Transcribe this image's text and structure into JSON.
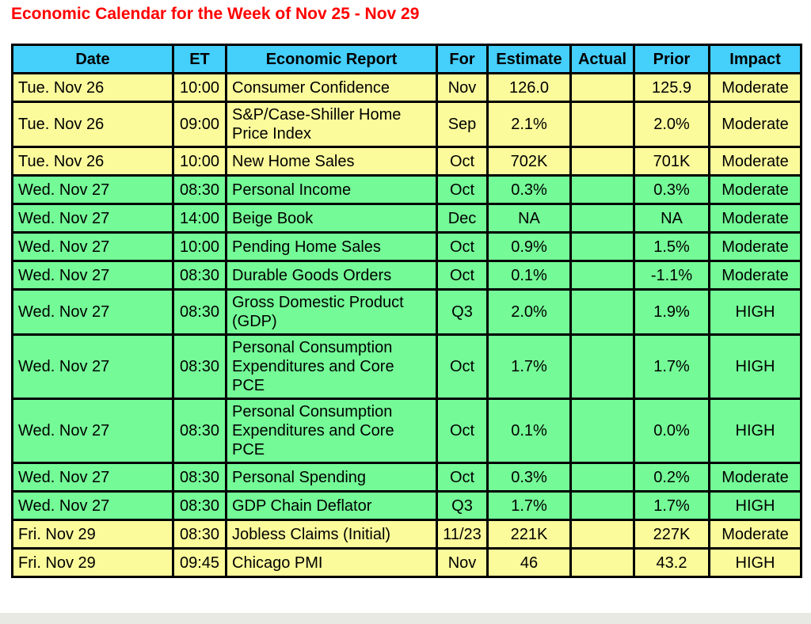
{
  "page": {
    "title": "Economic Calendar for the Week of Nov 25 - Nov 29"
  },
  "colors": {
    "title": "#FF0000",
    "header_bg": "#45CFFB",
    "yellow_row_bg": "#FBFB9C",
    "green_row_bg": "#74FB97",
    "border": "#000000",
    "text": "#000000",
    "page_bg": "#FFFFFF",
    "bottom_strip_bg": "#E9E9E4"
  },
  "chart_data": {
    "type": "table",
    "title": "Economic Calendar for the Week of Nov 25 - Nov 29",
    "columns": [
      "Date",
      "ET",
      "Economic Report",
      "For",
      "Estimate",
      "Actual",
      "Prior",
      "Impact"
    ],
    "rows": [
      {
        "date": "Tue. Nov 26",
        "et": "10:00",
        "report": "Consumer Confidence",
        "for": "Nov",
        "estimate": "126.0",
        "actual": "",
        "prior": "125.9",
        "impact": "Moderate",
        "row_color": "yellow"
      },
      {
        "date": "Tue. Nov 26",
        "et": "09:00",
        "report": "S&P/Case-Shiller Home Price Index",
        "for": "Sep",
        "estimate": "2.1%",
        "actual": "",
        "prior": "2.0%",
        "impact": "Moderate",
        "row_color": "yellow"
      },
      {
        "date": "Tue. Nov 26",
        "et": "10:00",
        "report": "New Home Sales",
        "for": "Oct",
        "estimate": "702K",
        "actual": "",
        "prior": "701K",
        "impact": "Moderate",
        "row_color": "yellow"
      },
      {
        "date": "Wed. Nov 27",
        "et": "08:30",
        "report": "Personal Income",
        "for": "Oct",
        "estimate": "0.3%",
        "actual": "",
        "prior": "0.3%",
        "impact": "Moderate",
        "row_color": "green"
      },
      {
        "date": "Wed. Nov 27",
        "et": "14:00",
        "report": "Beige Book",
        "for": "Dec",
        "estimate": "NA",
        "actual": "",
        "prior": "NA",
        "impact": "Moderate",
        "row_color": "green"
      },
      {
        "date": "Wed. Nov 27",
        "et": "10:00",
        "report": "Pending Home Sales",
        "for": "Oct",
        "estimate": "0.9%",
        "actual": "",
        "prior": "1.5%",
        "impact": "Moderate",
        "row_color": "green"
      },
      {
        "date": "Wed. Nov 27",
        "et": "08:30",
        "report": "Durable Goods Orders",
        "for": "Oct",
        "estimate": "0.1%",
        "actual": "",
        "prior": "-1.1%",
        "impact": "Moderate",
        "row_color": "green"
      },
      {
        "date": "Wed. Nov 27",
        "et": "08:30",
        "report": "Gross Domestic Product (GDP)",
        "for": "Q3",
        "estimate": "2.0%",
        "actual": "",
        "prior": "1.9%",
        "impact": "HIGH",
        "row_color": "green"
      },
      {
        "date": "Wed. Nov 27",
        "et": "08:30",
        "report": "Personal Consumption Expenditures and Core PCE",
        "for": "Oct",
        "estimate": "1.7%",
        "actual": "",
        "prior": "1.7%",
        "impact": "HIGH",
        "row_color": "green"
      },
      {
        "date": "Wed. Nov 27",
        "et": "08:30",
        "report": "Personal Consumption Expenditures and Core PCE",
        "for": "Oct",
        "estimate": "0.1%",
        "actual": "",
        "prior": "0.0%",
        "impact": "HIGH",
        "row_color": "green"
      },
      {
        "date": "Wed. Nov 27",
        "et": "08:30",
        "report": "Personal Spending",
        "for": "Oct",
        "estimate": "0.3%",
        "actual": "",
        "prior": "0.2%",
        "impact": "Moderate",
        "row_color": "green"
      },
      {
        "date": "Wed. Nov 27",
        "et": "08:30",
        "report": "GDP Chain Deflator",
        "for": "Q3",
        "estimate": "1.7%",
        "actual": "",
        "prior": "1.7%",
        "impact": "HIGH",
        "row_color": "green"
      },
      {
        "date": "Fri. Nov 29",
        "et": "08:30",
        "report": "Jobless Claims (Initial)",
        "for": "11/23",
        "estimate": "221K",
        "actual": "",
        "prior": "227K",
        "impact": "Moderate",
        "row_color": "yellow"
      },
      {
        "date": "Fri. Nov 29",
        "et": "09:45",
        "report": "Chicago PMI",
        "for": "Nov",
        "estimate": "46",
        "actual": "",
        "prior": "43.2",
        "impact": "HIGH",
        "row_color": "yellow"
      }
    ]
  }
}
